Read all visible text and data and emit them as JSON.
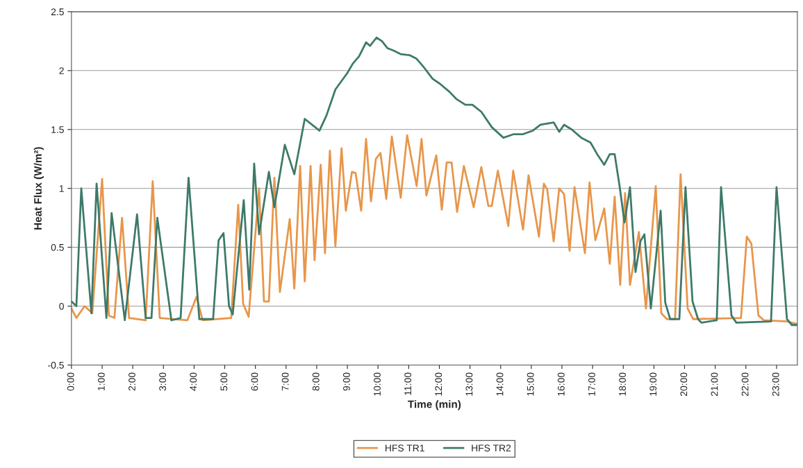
{
  "chart_data": {
    "type": "line",
    "xlabel": "Time (min)",
    "ylabel": "Heat Flux (W/m²)",
    "xlim": [
      0,
      23.68
    ],
    "ylim": [
      -0.5,
      2.5
    ],
    "xticks": [
      {
        "value": 0,
        "label": "0:00"
      },
      {
        "value": 1,
        "label": "1:00"
      },
      {
        "value": 2,
        "label": "2:00"
      },
      {
        "value": 3,
        "label": "3:00"
      },
      {
        "value": 4,
        "label": "4:00"
      },
      {
        "value": 5,
        "label": "5:00"
      },
      {
        "value": 6,
        "label": "6:00"
      },
      {
        "value": 7,
        "label": "7:00"
      },
      {
        "value": 8,
        "label": "8:00"
      },
      {
        "value": 9,
        "label": "9:00"
      },
      {
        "value": 10,
        "label": "10:00"
      },
      {
        "value": 11,
        "label": "11:00"
      },
      {
        "value": 12,
        "label": "12:00"
      },
      {
        "value": 13,
        "label": "13:00"
      },
      {
        "value": 14,
        "label": "14:00"
      },
      {
        "value": 15,
        "label": "15:00"
      },
      {
        "value": 16,
        "label": "16:00"
      },
      {
        "value": 17,
        "label": "17:00"
      },
      {
        "value": 18,
        "label": "18:00"
      },
      {
        "value": 19,
        "label": "19:00"
      },
      {
        "value": 20,
        "label": "20:00"
      },
      {
        "value": 21,
        "label": "21:00"
      },
      {
        "value": 22,
        "label": "22:00"
      },
      {
        "value": 23,
        "label": "23:00"
      }
    ],
    "yticks": [
      {
        "value": -0.5,
        "label": "-0.5"
      },
      0,
      0.5,
      1,
      1.5,
      2,
      2.5
    ],
    "grid": "y",
    "legend": "bottom",
    "marker": "none",
    "line_style": "solid",
    "series": [
      {
        "name": "HFS TR1",
        "color": "#e8964a",
        "x": [
          0.0,
          0.16,
          0.43,
          0.68,
          1.0,
          1.22,
          1.4,
          1.65,
          1.88,
          2.42,
          2.65,
          2.88,
          3.78,
          4.08,
          4.28,
          5.21,
          5.44,
          5.6,
          5.78,
          6.12,
          6.28,
          6.44,
          6.62,
          6.8,
          7.12,
          7.27,
          7.46,
          7.61,
          7.8,
          7.93,
          8.13,
          8.27,
          8.43,
          8.61,
          8.81,
          8.95,
          9.15,
          9.27,
          9.45,
          9.61,
          9.77,
          9.93,
          10.08,
          10.27,
          10.45,
          10.74,
          10.95,
          11.26,
          11.42,
          11.58,
          11.9,
          12.08,
          12.24,
          12.4,
          12.58,
          12.8,
          13.12,
          13.37,
          13.6,
          13.71,
          13.91,
          14.25,
          14.41,
          14.73,
          14.91,
          15.25,
          15.41,
          15.52,
          15.73,
          15.91,
          16.07,
          16.25,
          16.41,
          16.75,
          16.9,
          17.09,
          17.38,
          17.56,
          17.72,
          17.9,
          18.06,
          18.22,
          18.51,
          18.74,
          19.06,
          19.24,
          19.42,
          19.69,
          19.87,
          20.1,
          20.28,
          21.84,
          22.03,
          22.18,
          22.41,
          22.59,
          23.34,
          23.66
        ],
        "values": [
          -0.02,
          -0.1,
          0.0,
          -0.06,
          1.08,
          -0.08,
          -0.1,
          0.75,
          -0.1,
          -0.12,
          1.06,
          -0.1,
          -0.12,
          0.08,
          -0.12,
          -0.1,
          0.86,
          0.02,
          -0.09,
          1.0,
          0.04,
          0.04,
          1.09,
          0.12,
          0.74,
          0.15,
          1.19,
          0.21,
          1.19,
          0.39,
          1.2,
          0.45,
          1.32,
          0.51,
          1.34,
          0.81,
          1.14,
          1.13,
          0.81,
          1.42,
          0.89,
          1.25,
          1.3,
          0.91,
          1.44,
          0.92,
          1.45,
          1.02,
          1.42,
          0.94,
          1.28,
          0.82,
          1.22,
          1.22,
          0.8,
          1.19,
          0.84,
          1.18,
          0.85,
          0.85,
          1.15,
          0.68,
          1.15,
          0.65,
          1.11,
          0.59,
          1.04,
          0.99,
          0.55,
          1.0,
          0.95,
          0.47,
          1.01,
          0.45,
          1.05,
          0.56,
          0.83,
          0.36,
          0.93,
          0.18,
          0.96,
          0.18,
          0.63,
          -0.02,
          1.02,
          -0.06,
          -0.11,
          -0.11,
          1.12,
          -0.02,
          -0.11,
          -0.1,
          0.59,
          0.53,
          -0.08,
          -0.12,
          -0.13,
          -0.15
        ]
      },
      {
        "name": "HFS TR2",
        "color": "#3d7a6a",
        "x": [
          0.0,
          0.16,
          0.32,
          0.65,
          0.82,
          1.14,
          1.31,
          1.74,
          2.14,
          2.42,
          2.61,
          2.8,
          3.26,
          3.56,
          3.82,
          4.17,
          4.62,
          4.8,
          4.96,
          5.14,
          5.26,
          5.62,
          5.8,
          5.96,
          6.12,
          6.44,
          6.62,
          6.96,
          7.27,
          7.61,
          8.09,
          8.32,
          8.61,
          9.0,
          9.18,
          9.38,
          9.61,
          9.74,
          9.95,
          10.13,
          10.31,
          10.51,
          10.74,
          11.04,
          11.26,
          11.49,
          11.78,
          12.01,
          12.33,
          12.55,
          12.85,
          13.08,
          13.37,
          13.71,
          14.09,
          14.43,
          14.73,
          15.05,
          15.3,
          15.73,
          15.91,
          16.07,
          16.32,
          16.63,
          16.93,
          17.15,
          17.38,
          17.56,
          17.72,
          17.88,
          18.04,
          18.22,
          18.4,
          18.56,
          18.69,
          18.9,
          19.22,
          19.37,
          19.53,
          19.83,
          20.03,
          20.26,
          20.44,
          20.55,
          21.05,
          21.19,
          21.53,
          21.69,
          22.82,
          23.0,
          23.34,
          23.5,
          23.66
        ],
        "values": [
          0.04,
          0.0,
          1.0,
          -0.06,
          1.04,
          -0.1,
          0.79,
          -0.12,
          0.78,
          -0.1,
          -0.1,
          0.75,
          -0.12,
          -0.1,
          1.09,
          -0.11,
          -0.11,
          0.56,
          0.62,
          0.0,
          -0.07,
          0.9,
          0.14,
          1.21,
          0.61,
          1.14,
          0.84,
          1.37,
          1.12,
          1.59,
          1.49,
          1.62,
          1.84,
          1.98,
          2.06,
          2.12,
          2.24,
          2.21,
          2.28,
          2.25,
          2.19,
          2.17,
          2.14,
          2.13,
          2.1,
          2.03,
          1.93,
          1.89,
          1.82,
          1.76,
          1.71,
          1.71,
          1.65,
          1.52,
          1.43,
          1.46,
          1.46,
          1.49,
          1.54,
          1.56,
          1.48,
          1.54,
          1.5,
          1.43,
          1.39,
          1.29,
          1.2,
          1.29,
          1.29,
          1.02,
          0.71,
          1.01,
          0.29,
          0.55,
          0.61,
          -0.02,
          0.81,
          0.03,
          -0.11,
          -0.11,
          1.01,
          0.04,
          -0.11,
          -0.14,
          -0.12,
          1.01,
          -0.08,
          -0.14,
          -0.13,
          1.01,
          -0.11,
          -0.16,
          -0.16
        ]
      }
    ]
  }
}
